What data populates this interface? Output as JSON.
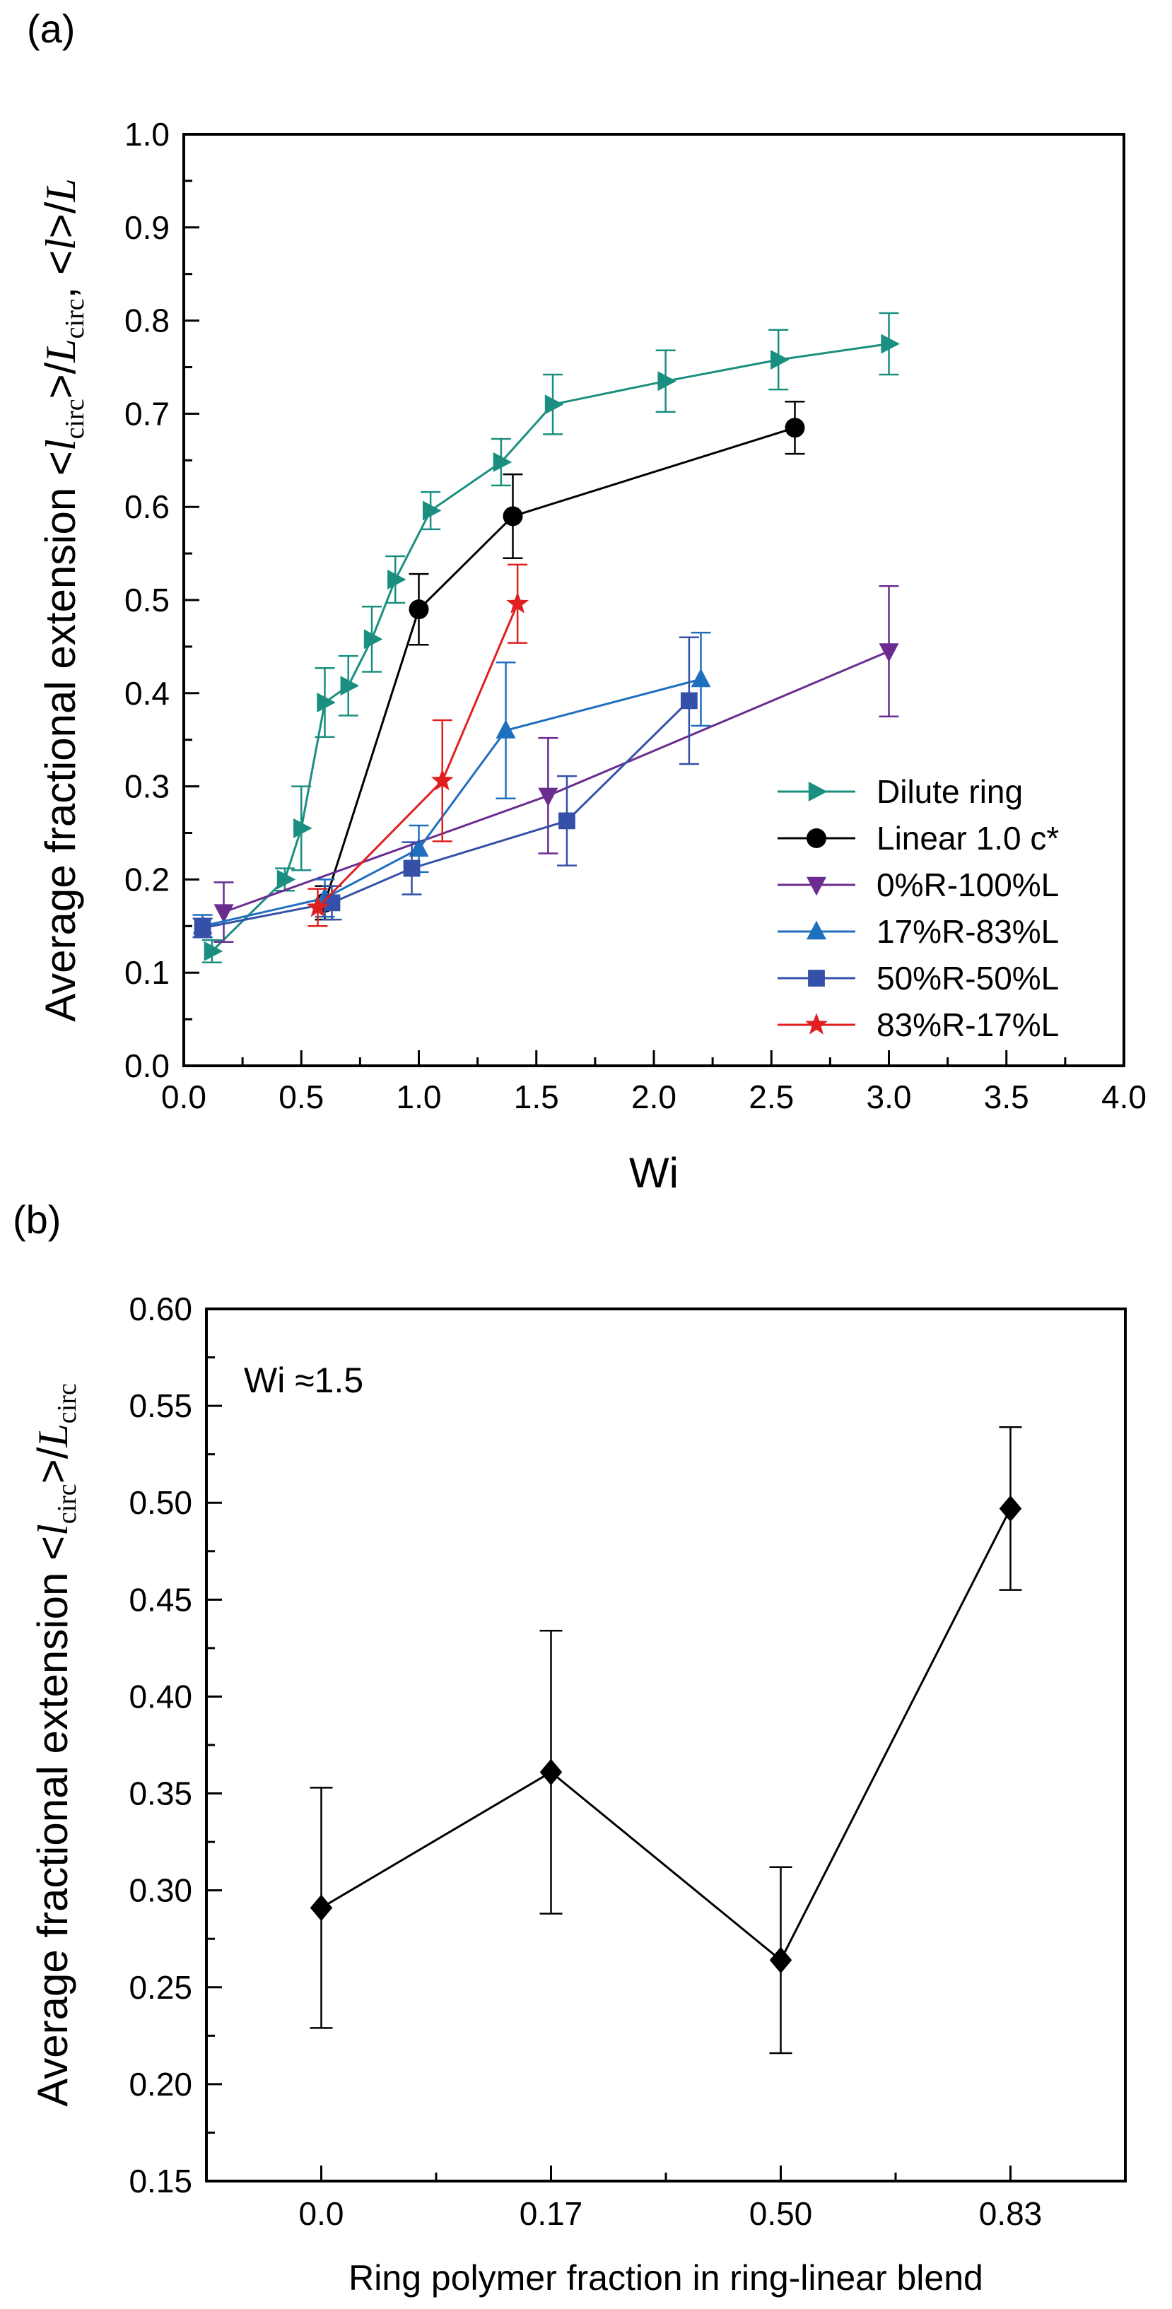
{
  "chart_data": [
    {
      "type": "line",
      "panel_label": "(a)",
      "xlabel": "Wi",
      "ylabel": {
        "prefix": "Average fractional extension <",
        "l": "l",
        "sub_circ": "circ",
        "mid": ">/",
        "L": "L",
        "sep": ", <",
        "l2": "l",
        "end": ">/",
        "L2": "L"
      },
      "xlim": [
        0.0,
        4.0
      ],
      "ylim": [
        0.0,
        1.0
      ],
      "xticks": [
        "0.0",
        "0.5",
        "1.0",
        "1.5",
        "2.0",
        "2.5",
        "3.0",
        "3.5",
        "4.0"
      ],
      "yticks": [
        "0.0",
        "0.1",
        "0.2",
        "0.3",
        "0.4",
        "0.5",
        "0.6",
        "0.7",
        "0.8",
        "0.9",
        "1.0"
      ],
      "legend_position": "lower-right",
      "series": [
        {
          "name": "Dilute ring",
          "color": "#1a8f80",
          "marker": "triangle-right",
          "x": [
            0.12,
            0.43,
            0.5,
            0.6,
            0.7,
            0.8,
            0.9,
            1.05,
            1.35,
            1.57,
            2.05,
            2.53,
            3.0
          ],
          "y": [
            0.123,
            0.2,
            0.255,
            0.39,
            0.408,
            0.458,
            0.522,
            0.596,
            0.648,
            0.71,
            0.735,
            0.758,
            0.775
          ],
          "err": [
            0.012,
            0.012,
            0.045,
            0.037,
            0.032,
            0.035,
            0.025,
            0.02,
            0.025,
            0.032,
            0.033,
            0.032,
            0.033
          ]
        },
        {
          "name": "Linear 1.0 c*",
          "color": "#000000",
          "marker": "circle",
          "x": [
            0.6,
            1.0,
            1.4,
            2.6
          ],
          "y": [
            0.175,
            0.49,
            0.59,
            0.685
          ],
          "err": [
            0.018,
            0.038,
            0.045,
            0.028
          ]
        },
        {
          "name": "0%R-100%L",
          "color": "#6a2c8f",
          "marker": "triangle-down",
          "x": [
            0.17,
            1.55,
            3.0
          ],
          "y": [
            0.165,
            0.29,
            0.445
          ],
          "err": [
            0.032,
            0.062,
            0.07
          ]
        },
        {
          "name": "17%R-83%L",
          "color": "#1f6fbf",
          "marker": "triangle-up",
          "x": [
            0.08,
            0.6,
            1.0,
            1.37,
            2.2
          ],
          "y": [
            0.15,
            0.18,
            0.233,
            0.36,
            0.415
          ],
          "err": [
            0.012,
            0.02,
            0.025,
            0.073,
            0.05
          ]
        },
        {
          "name": "50%R-50%L",
          "color": "#3450a8",
          "marker": "square",
          "x": [
            0.08,
            0.63,
            0.97,
            1.63,
            2.15
          ],
          "y": [
            0.148,
            0.175,
            0.212,
            0.263,
            0.392
          ],
          "err": [
            0.01,
            0.018,
            0.028,
            0.048,
            0.068
          ]
        },
        {
          "name": "83%R-17%L",
          "color": "#e02020",
          "marker": "star",
          "x": [
            0.57,
            1.1,
            1.42
          ],
          "y": [
            0.17,
            0.306,
            0.496
          ],
          "err": [
            0.02,
            0.065,
            0.042
          ]
        }
      ]
    },
    {
      "type": "line",
      "panel_label": "(b)",
      "xlabel": "Ring polymer fraction in ring-linear blend",
      "ylabel": {
        "prefix": "Average fractional extension <",
        "l": "l",
        "sub_circ": "circ",
        "mid": ">/",
        "L": "L",
        "sub_circ2": "circ"
      },
      "annotation": "Wi ≈1.5",
      "categories": [
        "0.0",
        "0.17",
        "0.50",
        "0.83"
      ],
      "ylim": [
        0.15,
        0.6
      ],
      "yticks": [
        "0.15",
        "0.20",
        "0.25",
        "0.30",
        "0.35",
        "0.40",
        "0.45",
        "0.50",
        "0.55",
        "0.60"
      ],
      "series": [
        {
          "name": "Wi 1.5",
          "color": "#000000",
          "marker": "diamond",
          "values": [
            0.291,
            0.361,
            0.264,
            0.497
          ],
          "err": [
            0.062,
            0.073,
            0.048,
            0.042
          ]
        }
      ]
    }
  ]
}
